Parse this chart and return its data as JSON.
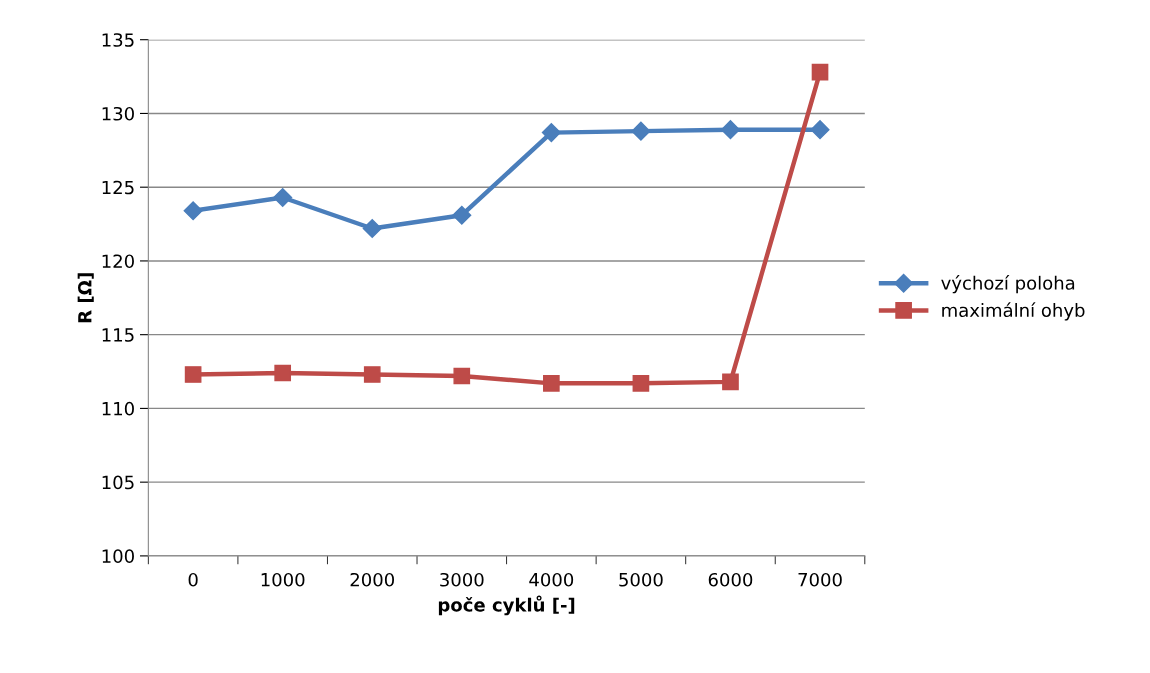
{
  "chart_data": {
    "type": "line",
    "xlabel": "poče cyklů [-]",
    "ylabel": "R [Ω]",
    "categories": [
      "0",
      "1000",
      "2000",
      "3000",
      "4000",
      "5000",
      "6000",
      "7000"
    ],
    "series": [
      {
        "name": "výchozí poloha",
        "color": "#4a7ebb",
        "marker": "diamond",
        "values": [
          123.4,
          124.3,
          122.2,
          123.1,
          128.7,
          128.8,
          128.9,
          128.9
        ]
      },
      {
        "name": "maximální ohyb",
        "color": "#be4b48",
        "marker": "square",
        "values": [
          112.3,
          112.4,
          112.3,
          112.2,
          111.7,
          111.7,
          111.8,
          132.8
        ]
      }
    ],
    "ylim": [
      100,
      135
    ],
    "yticks": [
      100,
      105,
      110,
      115,
      120,
      125,
      130,
      135
    ],
    "grid": "y",
    "legend": "right",
    "line_style": "solid"
  }
}
